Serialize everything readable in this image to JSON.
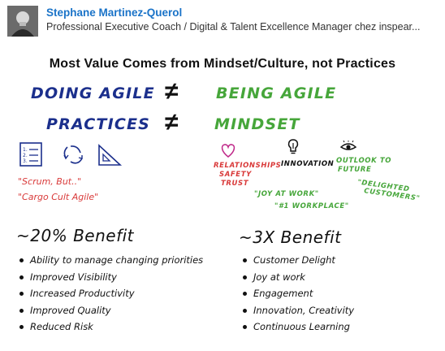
{
  "post": {
    "author_name": "Stephane Martinez-Querol",
    "headline": "Professional Executive Coach / Digital & Talent Excellence Manager chez inspear..."
  },
  "slide": {
    "title": "Most Value Comes from Mindset/Culture, not Practices",
    "row1": {
      "left": "DOING AGILE",
      "symbol": "≠",
      "right": "BEING AGILE"
    },
    "row2": {
      "left": "PRACTICES",
      "symbol": "≠",
      "right": "MINDSET"
    },
    "left_quotes": [
      "\"Scrum, But..\"",
      "\"Cargo Cult Agile\""
    ],
    "list_icon_lines": [
      "1.",
      "2.",
      "3."
    ],
    "right_labels": {
      "relationships": "RELATIONSHIPS",
      "safety": "SAFETY",
      "trust": "TRUST",
      "innovation": "INNOVATION",
      "outlook": "OUTLOOK TO",
      "future": "FUTURE",
      "joy": "\"JOY AT WORK\"",
      "workplace": "\"#1 WORKPLACE\"",
      "delighted": "\"DELIGHTED",
      "customers": "CUSTOMERS\""
    },
    "left_benefit": {
      "heading": "~20% Benefit",
      "items": [
        "Ability to manage changing priorities",
        "Improved Visibility",
        "Increased Productivity",
        "Improved Quality",
        "Reduced Risk"
      ]
    },
    "right_benefit": {
      "heading": "~3X Benefit",
      "items": [
        "Customer Delight",
        "Joy at work",
        "Engagement",
        "Innovation, Creativity",
        "Continuous Learning"
      ]
    }
  },
  "colors": {
    "name_link": "#1a73c8",
    "navy": "#1b2f8c",
    "green": "#46a63a",
    "red": "#d93a3a"
  },
  "icons": [
    "avatar",
    "checklist-icon",
    "cycle-icon",
    "triangle-ruler-icon",
    "heart-icon",
    "lightbulb-icon",
    "eye-icon"
  ]
}
